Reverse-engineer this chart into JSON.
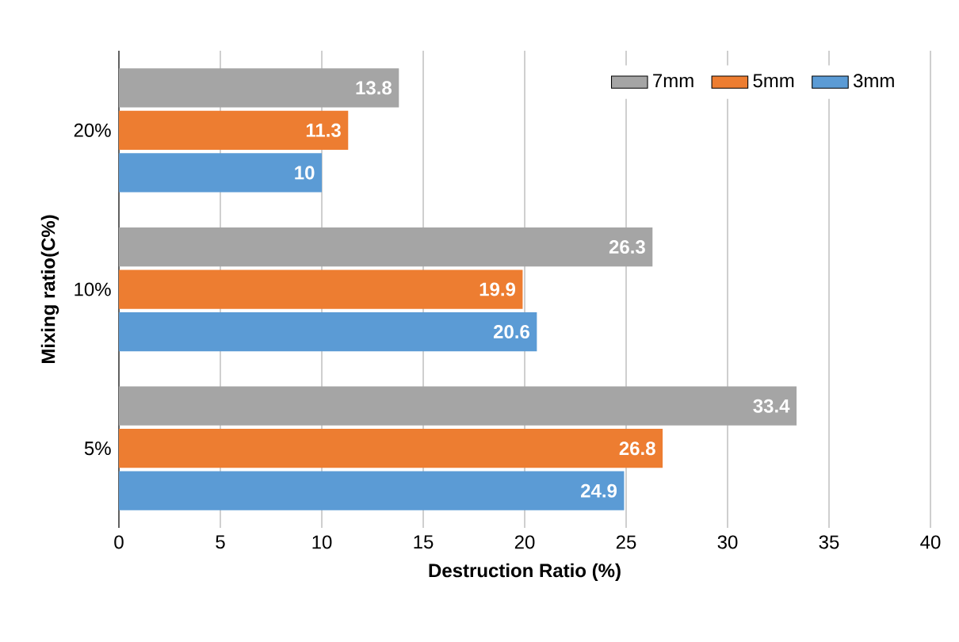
{
  "chart_data": {
    "type": "bar",
    "orientation": "horizontal",
    "categories": [
      "20%",
      "10%",
      "5%"
    ],
    "series": [
      {
        "name": "7mm",
        "color": "#a5a5a5",
        "values": [
          13.8,
          26.3,
          33.4
        ]
      },
      {
        "name": "5mm",
        "color": "#ed7d31",
        "values": [
          11.3,
          19.9,
          26.8
        ]
      },
      {
        "name": "3mm",
        "color": "#5b9bd5",
        "values": [
          10,
          20.6,
          24.9
        ]
      }
    ],
    "xlim": [
      0,
      40
    ],
    "xticks": [
      0,
      5,
      10,
      15,
      20,
      25,
      30,
      35,
      40
    ],
    "xlabel": "Destruction Ratio (%)",
    "ylabel": "Mixing ratio(C%)",
    "grid": "x",
    "legend": "top right",
    "data_labels": true
  }
}
